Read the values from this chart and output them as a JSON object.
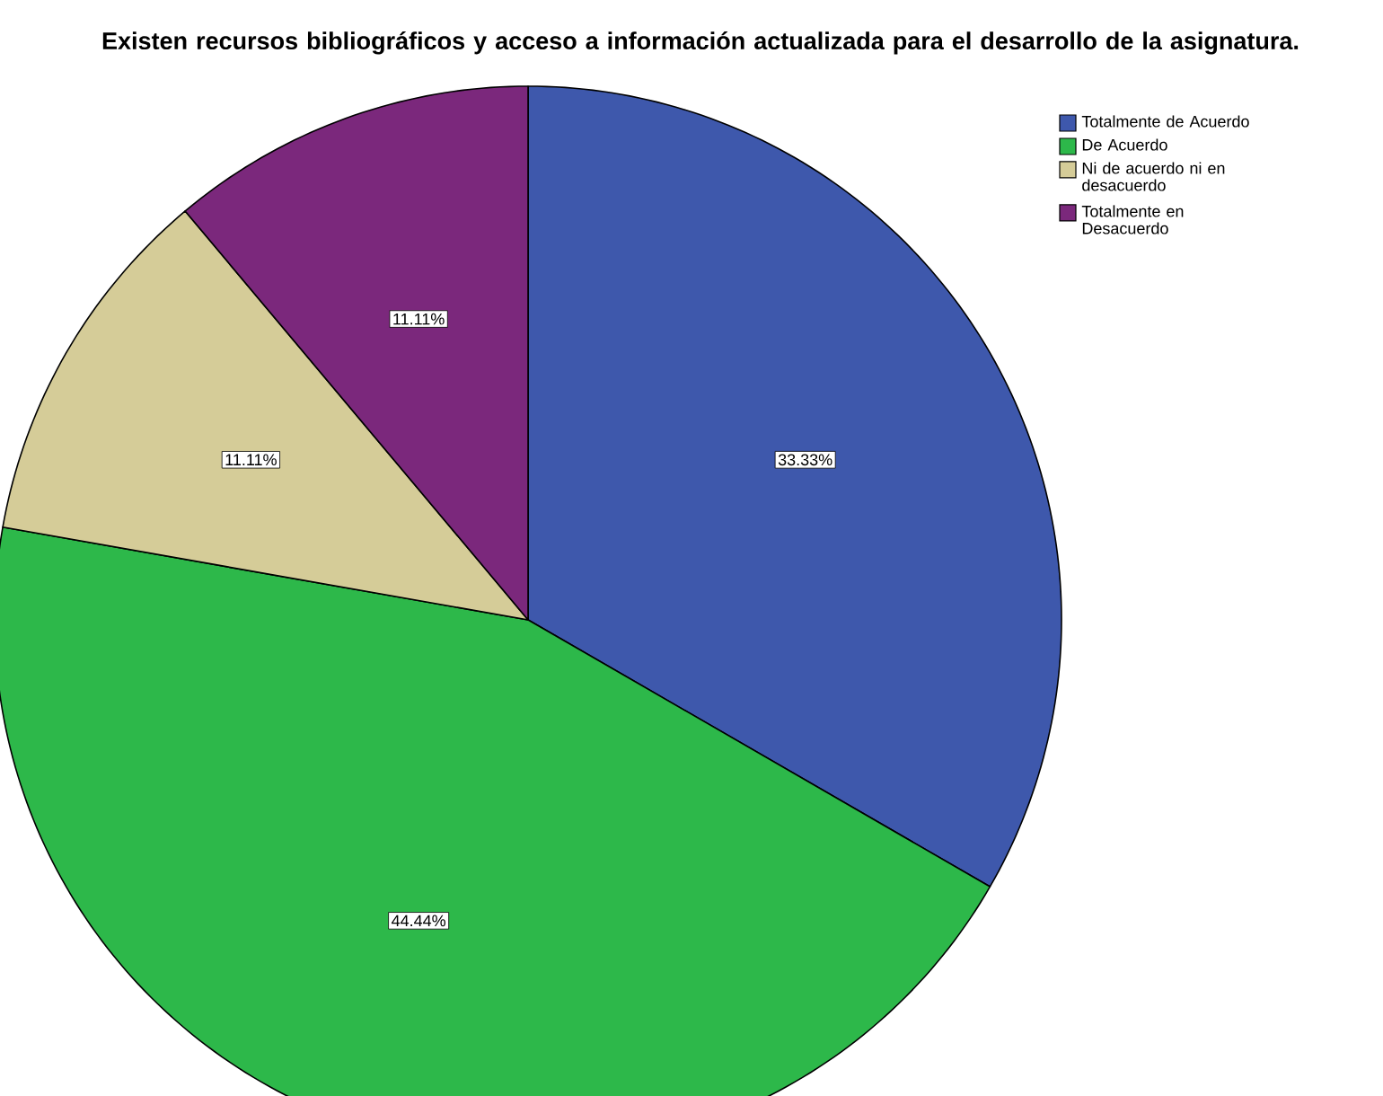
{
  "chart_data": {
    "type": "pie",
    "title": "Existen recursos bibliográficos y acceso a información actualizada para el desarrollo de la asignatura.",
    "categories": [
      "Totalmente de Acuerdo",
      "De Acuerdo",
      "Ni de acuerdo ni en desacuerdo",
      "Totalmente en Desacuerdo"
    ],
    "values": [
      33.33,
      44.44,
      11.11,
      11.11
    ],
    "colors": [
      "#3e58ac",
      "#2db84a",
      "#d5cc98",
      "#7b287c"
    ],
    "value_labels": [
      "33.33%",
      "44.44%",
      "11.11%",
      "11.11%"
    ],
    "legend": "top right"
  }
}
